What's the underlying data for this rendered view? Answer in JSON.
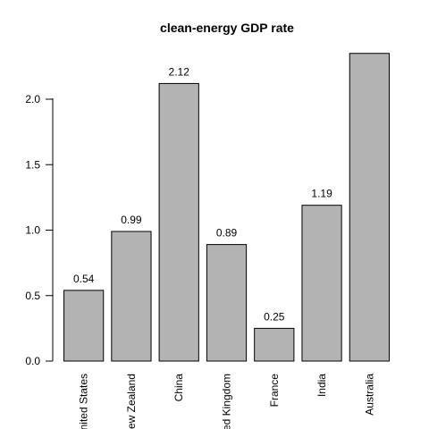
{
  "chart_data": {
    "type": "bar",
    "title": "clean-energy GDP rate",
    "xlabel": "",
    "ylabel": "",
    "categories": [
      "United States",
      "New Zealand",
      "China",
      "United Kingdom",
      "France",
      "India",
      "Australia"
    ],
    "values": [
      0.54,
      0.99,
      2.12,
      0.89,
      0.25,
      1.19,
      2.35
    ],
    "data_labels": [
      "0.54",
      "0.99",
      "2.12",
      "0.89",
      "0.25",
      "1.19",
      ""
    ],
    "ylim": [
      0,
      2.4
    ],
    "yticks": [
      0.0,
      0.5,
      1.0,
      1.5,
      2.0
    ],
    "ytick_labels": [
      "0.0",
      "0.5",
      "1.0",
      "1.5",
      "2.0"
    ],
    "grid": false,
    "bar_color": "#b3b3b3",
    "bar_edge_color": "#000000"
  }
}
